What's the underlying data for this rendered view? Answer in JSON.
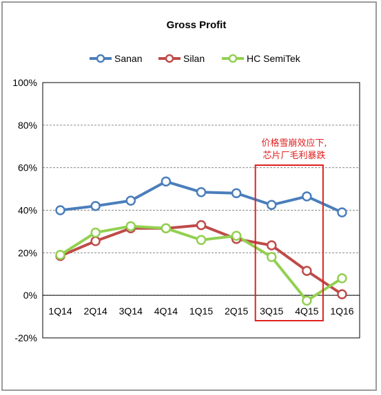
{
  "chart_data": {
    "type": "line",
    "title": "Gross Profit",
    "categories": [
      "1Q14",
      "2Q14",
      "3Q14",
      "4Q14",
      "1Q15",
      "2Q15",
      "3Q15",
      "4Q15",
      "1Q16"
    ],
    "series": [
      {
        "name": "Sanan",
        "color": "#4a7ebb",
        "values": [
          40,
          42,
          44.5,
          53.5,
          48.5,
          48,
          42.5,
          46.5,
          39
        ]
      },
      {
        "name": "Silan",
        "color": "#be4b48",
        "values": [
          18.5,
          25.5,
          31.5,
          31.5,
          33,
          26.5,
          23.5,
          11.5,
          0.5
        ]
      },
      {
        "name": "HC SemiTek",
        "color": "#92d050",
        "values": [
          19,
          29.5,
          32.5,
          31.5,
          26,
          28,
          18,
          -2.5,
          8
        ]
      }
    ],
    "ylim": [
      -20,
      100
    ],
    "yticks": [
      -20,
      0,
      20,
      40,
      60,
      80,
      100
    ],
    "ytick_labels": [
      "-20%",
      "0%",
      "20%",
      "40%",
      "60%",
      "80%",
      "100%"
    ],
    "grid": "horizontal dashed",
    "legend_position": "top",
    "xlabel": "",
    "ylabel": "",
    "annotation": {
      "lines": [
        "价格雪崩效应下,",
        "芯片厂毛利暴跌"
      ],
      "color": "#e02020",
      "highlight_categories": [
        "3Q15",
        "4Q15"
      ]
    }
  }
}
